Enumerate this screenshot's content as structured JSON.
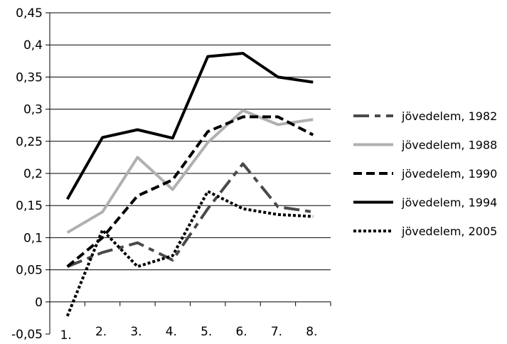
{
  "chart_data": {
    "type": "line",
    "categories": [
      "1.",
      "2.",
      "3.",
      "4.",
      "5.",
      "6.",
      "7.",
      "8."
    ],
    "y_ticks": [
      "-0,05",
      "0",
      "0,05",
      "0,1",
      "0,15",
      "0,2",
      "0,25",
      "0,3",
      "0,35",
      "0,4",
      "0,45"
    ],
    "ylim": [
      -0.05,
      0.45
    ],
    "ytick_step": 0.05,
    "grid": true,
    "legend_position": "right",
    "series": [
      {
        "name": "jövedelem, 1982",
        "values": [
          0.055,
          0.077,
          0.092,
          0.065,
          0.145,
          0.215,
          0.148,
          0.14
        ],
        "color": "#4a4a4a",
        "dash": "dashdot"
      },
      {
        "name": "jövedelem, 1988",
        "values": [
          0.108,
          0.14,
          0.225,
          0.175,
          0.248,
          0.298,
          0.276,
          0.284
        ],
        "color": "#b0b0b0",
        "dash": "solid"
      },
      {
        "name": "jövedelem, 1990",
        "values": [
          0.055,
          0.1,
          0.165,
          0.19,
          0.265,
          0.288,
          0.288,
          0.26
        ],
        "color": "#000000",
        "dash": "dashed"
      },
      {
        "name": "jövedelem, 1994",
        "values": [
          0.16,
          0.256,
          0.268,
          0.255,
          0.382,
          0.387,
          0.35,
          0.342
        ],
        "color": "#000000",
        "dash": "solid"
      },
      {
        "name": "jövedelem, 2005",
        "values": [
          -0.022,
          0.112,
          0.055,
          0.072,
          0.172,
          0.145,
          0.136,
          0.133
        ],
        "color": "#000000",
        "dash": "dotted"
      }
    ]
  }
}
